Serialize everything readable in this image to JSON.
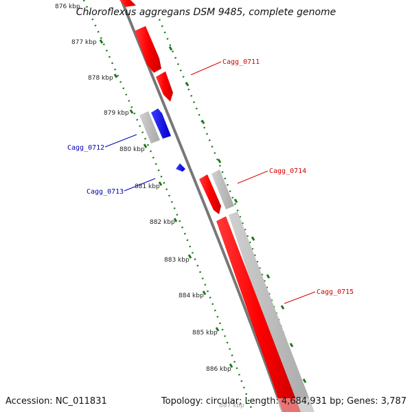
{
  "title": "Chloroflexus aggregans DSM 9485, complete genome",
  "accession": "Accession: NC_011831",
  "summary": "Topology: circular; Length: 4,684,931 bp; Genes: 3,787",
  "ticks": [
    "876 kbp",
    "877 kbp",
    "878 kbp",
    "879 kbp",
    "880 kbp",
    "881 kbp",
    "882 kbp",
    "883 kbp",
    "884 kbp",
    "885 kbp",
    "886 kbp",
    "887 kbp"
  ],
  "gene_labels": [
    {
      "text": "Cagg_0711",
      "color": "#d40000"
    },
    {
      "text": "Cagg_0712",
      "color": "#0000b0"
    },
    {
      "text": "Cagg_0713",
      "color": "#0000b0"
    },
    {
      "text": "Cagg_0714",
      "color": "#d40000"
    },
    {
      "text": "Cagg_0715",
      "color": "#d40000"
    }
  ],
  "colors": {
    "forward_cds": "#ff0000",
    "reverse_cds": "#0000ff",
    "gene_track": "#b8b8b8",
    "backbone": "#777777",
    "tick_green": "#1a7a1a"
  }
}
